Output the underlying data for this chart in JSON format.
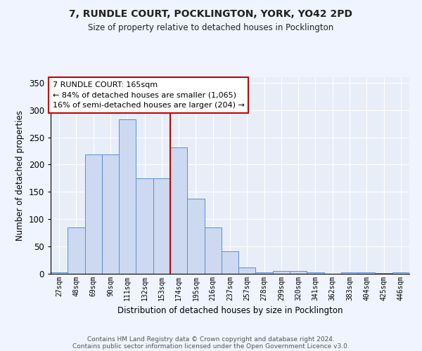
{
  "title1": "7, RUNDLE COURT, POCKLINGTON, YORK, YO42 2PD",
  "title2": "Size of property relative to detached houses in Pocklington",
  "xlabel": "Distribution of detached houses by size in Pocklington",
  "ylabel": "Number of detached properties",
  "bar_color": "#ccd9f0",
  "bar_edge_color": "#5b8dd9",
  "bg_color": "#e8eef8",
  "grid_color": "#ffffff",
  "categories": [
    "27sqm",
    "48sqm",
    "69sqm",
    "90sqm",
    "111sqm",
    "132sqm",
    "153sqm",
    "174sqm",
    "195sqm",
    "216sqm",
    "237sqm",
    "257sqm",
    "278sqm",
    "299sqm",
    "320sqm",
    "341sqm",
    "362sqm",
    "383sqm",
    "404sqm",
    "425sqm",
    "446sqm"
  ],
  "values": [
    3,
    85,
    219,
    219,
    283,
    175,
    175,
    231,
    138,
    85,
    41,
    11,
    3,
    5,
    5,
    3,
    0,
    3,
    3,
    1,
    3
  ],
  "vline_x_idx": 7,
  "vline_color": "#cc0000",
  "annotation_text": "7 RUNDLE COURT: 165sqm\n← 84% of detached houses are smaller (1,065)\n16% of semi-detached houses are larger (204) →",
  "annotation_box_color": "#ffffff",
  "annotation_box_edge": "#cc0000",
  "ylim": [
    0,
    360
  ],
  "yticks": [
    0,
    50,
    100,
    150,
    200,
    250,
    300,
    350
  ],
  "footer1": "Contains HM Land Registry data © Crown copyright and database right 2024.",
  "footer2": "Contains public sector information licensed under the Open Government Licence v3.0."
}
